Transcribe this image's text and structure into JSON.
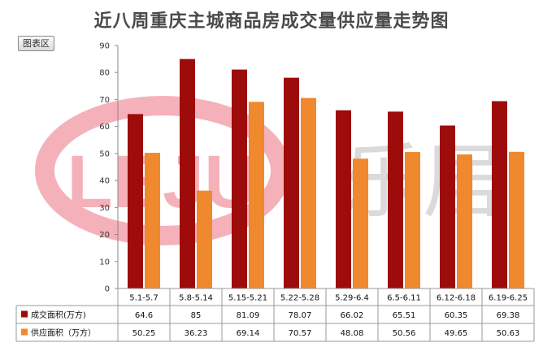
{
  "title": "近八周重庆主城商品房成交量供应量走势图",
  "chart_area_label": "图表区",
  "watermark": {
    "logo_text": "LEJU",
    "brand_text": "乐居"
  },
  "chart_data": {
    "type": "bar",
    "title": "近八周重庆主城商品房成交量供应量走势图",
    "categories": [
      "5.1-5.7",
      "5.8-5.14",
      "5.15-5.21",
      "5.22-5.28",
      "5.29-6.4",
      "6.5-6.11",
      "6.12-6.18",
      "6.19-6.25"
    ],
    "series": [
      {
        "name": "成交面积(万方)",
        "color": "#9e0b0b",
        "values": [
          64.6,
          85,
          81.09,
          78.07,
          66.02,
          65.51,
          60.35,
          69.38
        ]
      },
      {
        "name": "供应面积（万方）",
        "color": "#f0882e",
        "values": [
          50.25,
          36.23,
          69.14,
          70.57,
          48.08,
          50.56,
          49.65,
          50.63
        ]
      }
    ],
    "xlabel": "",
    "ylabel": "",
    "ylim": [
      0,
      90
    ],
    "yticks": [
      0,
      10,
      20,
      30,
      40,
      50,
      60,
      70,
      80,
      90
    ],
    "grid": false,
    "legend": "data-table-left"
  }
}
